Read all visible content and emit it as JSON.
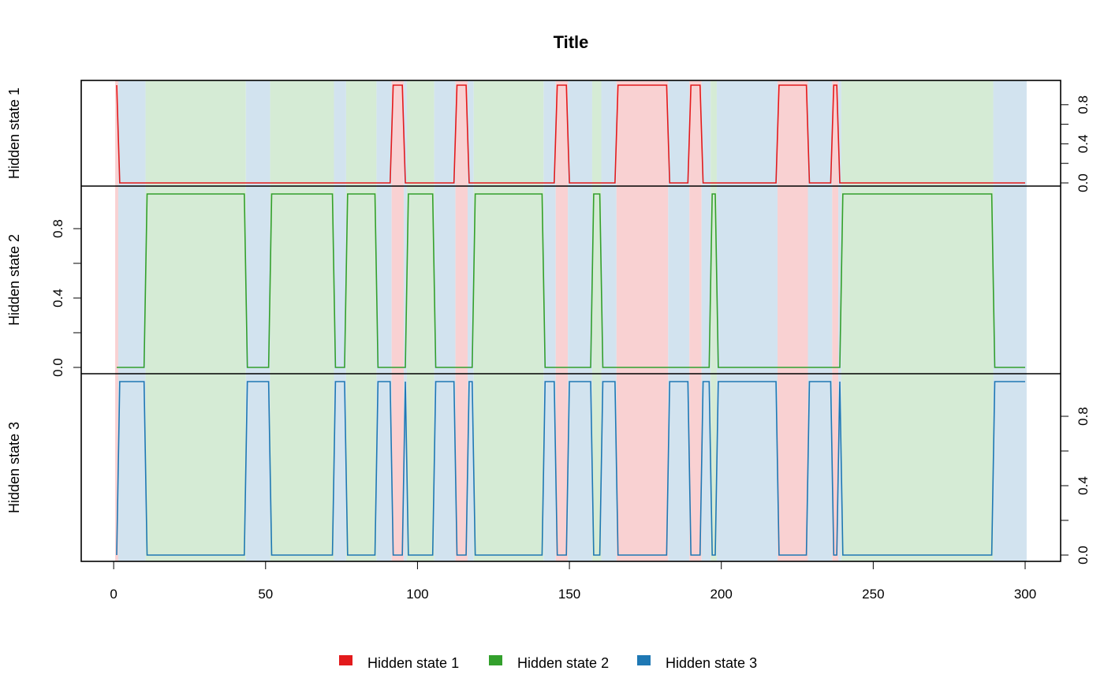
{
  "chart_data": {
    "type": "line",
    "title": "Title",
    "x_ticks": [
      0,
      50,
      100,
      150,
      200,
      250,
      300
    ],
    "xlim": [
      1,
      300
    ],
    "ylim": [
      0,
      1
    ],
    "y_ticks": [
      0,
      0.2,
      0.4,
      0.6,
      0.8
    ],
    "y_tick_labels": [
      "0.0",
      "0.4",
      "0.8"
    ],
    "grid": false,
    "legend_placement": "bottom",
    "panels": [
      {
        "name": "Hidden state 1",
        "ylabel": "Hidden state 1",
        "axis_side": "right"
      },
      {
        "name": "Hidden state 2",
        "ylabel": "Hidden state 2",
        "axis_side": "left"
      },
      {
        "name": "Hidden state 3",
        "ylabel": "Hidden state 3",
        "axis_side": "right"
      }
    ],
    "series": [
      {
        "name": "Hidden state 1",
        "color": "#e31a1c",
        "shade": "#f9d1d2"
      },
      {
        "name": "Hidden state 2",
        "color": "#33a02c",
        "shade": "#d5ebd5"
      },
      {
        "name": "Hidden state 3",
        "color": "#1f78b4",
        "shade": "#d2e3ef"
      }
    ],
    "state_segments": [
      {
        "start": 1,
        "end": 1,
        "state": 1
      },
      {
        "start": 2,
        "end": 10,
        "state": 3
      },
      {
        "start": 11,
        "end": 43,
        "state": 2
      },
      {
        "start": 44,
        "end": 51,
        "state": 3
      },
      {
        "start": 52,
        "end": 72,
        "state": 2
      },
      {
        "start": 73,
        "end": 76,
        "state": 3
      },
      {
        "start": 77,
        "end": 86,
        "state": 2
      },
      {
        "start": 87,
        "end": 91,
        "state": 3
      },
      {
        "start": 92,
        "end": 95,
        "state": 1
      },
      {
        "start": 96,
        "end": 96,
        "state": 3
      },
      {
        "start": 97,
        "end": 105,
        "state": 2
      },
      {
        "start": 106,
        "end": 112,
        "state": 3
      },
      {
        "start": 113,
        "end": 116,
        "state": 1
      },
      {
        "start": 117,
        "end": 118,
        "state": 3
      },
      {
        "start": 119,
        "end": 141,
        "state": 2
      },
      {
        "start": 142,
        "end": 145,
        "state": 3
      },
      {
        "start": 146,
        "end": 149,
        "state": 1
      },
      {
        "start": 150,
        "end": 157,
        "state": 3
      },
      {
        "start": 158,
        "end": 160,
        "state": 2
      },
      {
        "start": 161,
        "end": 165,
        "state": 3
      },
      {
        "start": 166,
        "end": 182,
        "state": 1
      },
      {
        "start": 183,
        "end": 189,
        "state": 3
      },
      {
        "start": 190,
        "end": 193,
        "state": 1
      },
      {
        "start": 194,
        "end": 196,
        "state": 3
      },
      {
        "start": 197,
        "end": 198,
        "state": 2
      },
      {
        "start": 199,
        "end": 218,
        "state": 3
      },
      {
        "start": 219,
        "end": 228,
        "state": 1
      },
      {
        "start": 229,
        "end": 236,
        "state": 3
      },
      {
        "start": 237,
        "end": 238,
        "state": 1
      },
      {
        "start": 239,
        "end": 239,
        "state": 3
      },
      {
        "start": 240,
        "end": 289,
        "state": 2
      },
      {
        "start": 290,
        "end": 300,
        "state": 3
      }
    ]
  }
}
